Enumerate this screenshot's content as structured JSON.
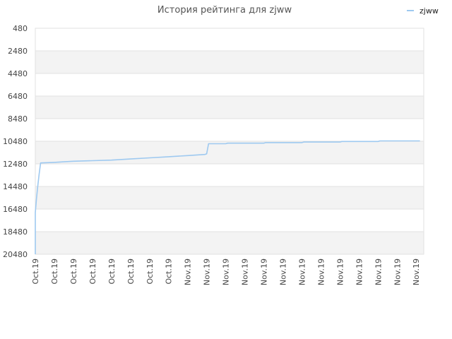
{
  "chart_data": {
    "type": "line",
    "title": "История рейтинга для zjww",
    "y_reversed": true,
    "ylim": [
      480,
      20480
    ],
    "y_ticks": [
      480,
      2480,
      4480,
      6480,
      8480,
      10480,
      12480,
      14480,
      16480,
      18480,
      20480
    ],
    "y_tick_labels": [
      "480",
      "2480",
      "4480",
      "6480",
      "8480",
      "10480",
      "12480",
      "14480",
      "16480",
      "18480",
      "20480"
    ],
    "x_tick_labels": [
      "Oct.19",
      "Oct.19",
      "Oct.19",
      "Oct.19",
      "Oct.19",
      "Oct.19",
      "Oct.19",
      "Oct.19",
      "Nov.19",
      "Nov.19",
      "Nov.19",
      "Nov.19",
      "Nov.19",
      "Nov.19",
      "Nov.19",
      "Nov.19",
      "Nov.19",
      "Nov.19",
      "Nov.19",
      "Nov.19",
      "Nov.19"
    ],
    "grid": true,
    "legend_position": "top-right",
    "line_color": "#9ec9f0",
    "band_color": "#f3f3f3",
    "series": [
      {
        "name": "zjww",
        "points": [
          [
            0.0,
            20480
          ],
          [
            0.0,
            16800
          ],
          [
            0.06,
            15600
          ],
          [
            0.12,
            14600
          ],
          [
            0.2,
            13400
          ],
          [
            0.28,
            12400
          ],
          [
            1.0,
            12350
          ],
          [
            1.5,
            12300
          ],
          [
            2.0,
            12250
          ],
          [
            3.0,
            12200
          ],
          [
            4.0,
            12150
          ],
          [
            5.0,
            12050
          ],
          [
            6.0,
            11950
          ],
          [
            7.0,
            11850
          ],
          [
            8.0,
            11750
          ],
          [
            8.9,
            11650
          ],
          [
            9.0,
            11600
          ],
          [
            9.1,
            10700
          ],
          [
            10.0,
            10700
          ],
          [
            10.1,
            10650
          ],
          [
            11.0,
            10650
          ],
          [
            12.0,
            10650
          ],
          [
            12.1,
            10600
          ],
          [
            14.0,
            10600
          ],
          [
            14.1,
            10550
          ],
          [
            16.0,
            10550
          ],
          [
            16.1,
            10500
          ],
          [
            18.0,
            10500
          ],
          [
            18.1,
            10450
          ],
          [
            20.0,
            10450
          ],
          [
            20.2,
            10450
          ]
        ]
      }
    ]
  }
}
